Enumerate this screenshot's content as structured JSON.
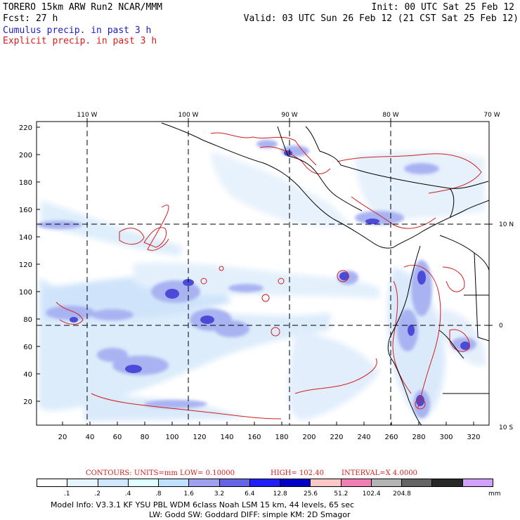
{
  "header": {
    "line1_left": "TORERO  15km ARW   Run2    NCAR/MMM",
    "line1_right": "Init: 00 UTC Sat 25 Feb 12",
    "line2_left": "Fcst:   27 h",
    "line2_right": "Valid: 03 UTC Sun 26 Feb 12 (21 CST Sat 25 Feb 12)",
    "legend_cumulus": "Cumulus precip. in past 3 h",
    "legend_explicit": "Explicit precip. in past 3 h"
  },
  "map": {
    "top_lon_labels": [
      "110 W",
      "100 W",
      "90 W",
      "80 W",
      "70 W"
    ],
    "right_lat_labels": [
      "10 N",
      "0",
      "10 S"
    ],
    "left_y_ticks": [
      "220",
      "200",
      "180",
      "160",
      "140",
      "120",
      "100",
      "80",
      "60",
      "40",
      "20"
    ],
    "bottom_x_ticks": [
      "20",
      "40",
      "60",
      "80",
      "100",
      "120",
      "140",
      "160",
      "180",
      "200",
      "220",
      "240",
      "260",
      "280",
      "300",
      "320"
    ]
  },
  "contour_info": {
    "label": "CONTOURS:  UNITS=mm  LOW= 0.10000",
    "high": "HIGH=  102.40",
    "interval": "INTERVAL=X  4.0000"
  },
  "colorbar": {
    "labels": [
      ".1",
      ".2",
      ".4",
      ".8",
      "1.6",
      "3.2",
      "6.4",
      "12.8",
      "25.6",
      "51.2",
      "102.4",
      "204.8"
    ],
    "units": "mm",
    "colors": [
      "#ffffff",
      "#e6f4ff",
      "#cfe8ff",
      "#e0ffff",
      "#c0e0ff",
      "#a0a0f0",
      "#6464e6",
      "#2020ff",
      "#0000c8",
      "#ffc8c8",
      "#f080b4",
      "#b4b4b4",
      "#646464",
      "#282828",
      "#d2a0ff"
    ]
  },
  "model_info": {
    "line1": "Model Info: V3.3.1    KF     YSU PBL   WDM 6class  Noah LSM  15 km,    44 levels,    65 sec",
    "line2": "LW: Godd SW: Goddard DIFF: simple KM: 2D Smagor"
  }
}
